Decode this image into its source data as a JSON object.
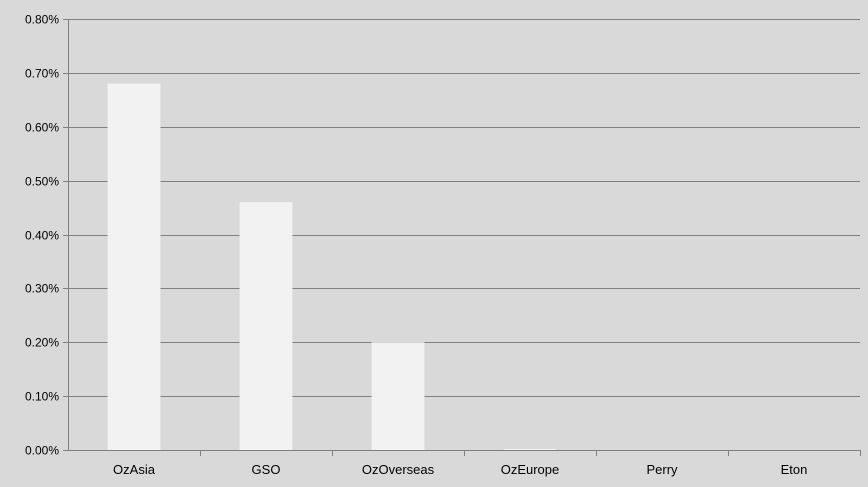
{
  "chart_data": {
    "type": "bar",
    "title": "",
    "xlabel": "",
    "ylabel": "",
    "categories": [
      "OzAsia",
      "GSO",
      "OzOverseas",
      "OzEurope",
      "Perry",
      "Eton"
    ],
    "series": [
      {
        "values": [
          0.0068,
          0.0046,
          0.002,
          2e-05,
          0.0,
          0.0
        ]
      }
    ],
    "ylim": [
      0,
      0.008
    ],
    "y_ticks": [
      "0.00%",
      "0.10%",
      "0.20%",
      "0.30%",
      "0.40%",
      "0.50%",
      "0.60%",
      "0.70%",
      "0.80%"
    ],
    "grid": true,
    "legend": "none",
    "colors": {
      "background": "#d9d9d9",
      "bar": "#f2f2f2",
      "gridline": "#808080",
      "axis": "#808080"
    }
  }
}
